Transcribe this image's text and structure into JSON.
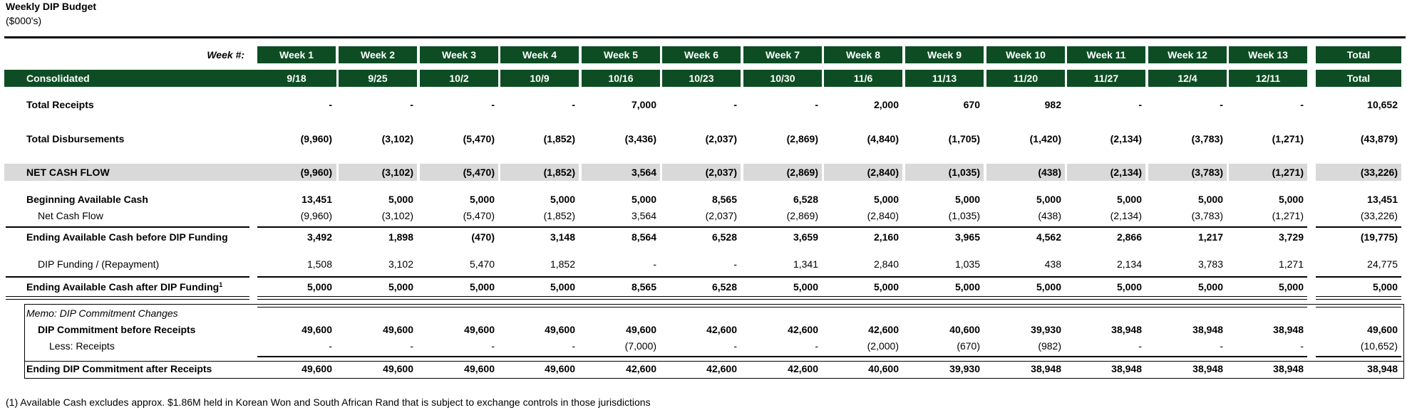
{
  "header": {
    "title": "Weekly DIP Budget",
    "subtitle": "($000's)"
  },
  "columns": {
    "week_label": "Week #:",
    "weeks": [
      "Week 1",
      "Week 2",
      "Week 3",
      "Week 4",
      "Week 5",
      "Week 6",
      "Week 7",
      "Week 8",
      "Week 9",
      "Week 10",
      "Week 11",
      "Week 12",
      "Week 13"
    ],
    "week_total": "Total",
    "consolidated_label": "Consolidated",
    "dates": [
      "9/18",
      "9/25",
      "10/2",
      "10/9",
      "10/16",
      "10/23",
      "10/30",
      "11/6",
      "11/13",
      "11/20",
      "11/27",
      "12/4",
      "12/11"
    ],
    "date_total": "Total"
  },
  "rows": {
    "total_receipts": {
      "label": "Total Receipts",
      "values": [
        "-",
        "-",
        "-",
        "-",
        "7,000",
        "-",
        "-",
        "2,000",
        "670",
        "982",
        "-",
        "-",
        "-"
      ],
      "total": "10,652"
    },
    "total_disbursements": {
      "label": "Total Disbursements",
      "values": [
        "(9,960)",
        "(3,102)",
        "(5,470)",
        "(1,852)",
        "(3,436)",
        "(2,037)",
        "(2,869)",
        "(4,840)",
        "(1,705)",
        "(1,420)",
        "(2,134)",
        "(3,783)",
        "(1,271)"
      ],
      "total": "(43,879)"
    },
    "net_cash_flow": {
      "label": "NET CASH FLOW",
      "values": [
        "(9,960)",
        "(3,102)",
        "(5,470)",
        "(1,852)",
        "3,564",
        "(2,037)",
        "(2,869)",
        "(2,840)",
        "(1,035)",
        "(438)",
        "(2,134)",
        "(3,783)",
        "(1,271)"
      ],
      "total": "(33,226)"
    },
    "beginning_cash": {
      "label": "Beginning Available Cash",
      "values": [
        "13,451",
        "5,000",
        "5,000",
        "5,000",
        "5,000",
        "8,565",
        "6,528",
        "5,000",
        "5,000",
        "5,000",
        "5,000",
        "5,000",
        "5,000"
      ],
      "total": "13,451"
    },
    "net_cash_flow_sub": {
      "label": "Net Cash Flow",
      "values": [
        "(9,960)",
        "(3,102)",
        "(5,470)",
        "(1,852)",
        "3,564",
        "(2,037)",
        "(2,869)",
        "(2,840)",
        "(1,035)",
        "(438)",
        "(2,134)",
        "(3,783)",
        "(1,271)"
      ],
      "total": "(33,226)"
    },
    "ending_before_dip": {
      "label": "Ending Available Cash before DIP Funding",
      "values": [
        "3,492",
        "1,898",
        "(470)",
        "3,148",
        "8,564",
        "6,528",
        "3,659",
        "2,160",
        "3,965",
        "4,562",
        "2,866",
        "1,217",
        "3,729"
      ],
      "total": "(19,775)"
    },
    "dip_funding": {
      "label": "DIP Funding / (Repayment)",
      "values": [
        "1,508",
        "3,102",
        "5,470",
        "1,852",
        "-",
        "-",
        "1,341",
        "2,840",
        "1,035",
        "438",
        "2,134",
        "3,783",
        "1,271"
      ],
      "total": "24,775"
    },
    "ending_after_dip": {
      "label": "Ending Available Cash after DIP Funding",
      "footnote_mark": "1",
      "values": [
        "5,000",
        "5,000",
        "5,000",
        "5,000",
        "8,565",
        "6,528",
        "5,000",
        "5,000",
        "5,000",
        "5,000",
        "5,000",
        "5,000",
        "5,000"
      ],
      "total": "5,000"
    }
  },
  "memo": {
    "title": "Memo: DIP Commitment Changes",
    "before_receipts": {
      "label": "DIP Commitment before Receipts",
      "values": [
        "49,600",
        "49,600",
        "49,600",
        "49,600",
        "49,600",
        "42,600",
        "42,600",
        "42,600",
        "40,600",
        "39,930",
        "38,948",
        "38,948",
        "38,948"
      ],
      "total": "49,600"
    },
    "less_receipts": {
      "label": "Less: Receipts",
      "values": [
        "-",
        "-",
        "-",
        "-",
        "(7,000)",
        "-",
        "-",
        "(2,000)",
        "(670)",
        "(982)",
        "-",
        "-",
        "-"
      ],
      "total": "(10,652)"
    },
    "ending_commitment": {
      "label": "Ending DIP Commitment after Receipts",
      "values": [
        "49,600",
        "49,600",
        "49,600",
        "49,600",
        "42,600",
        "42,600",
        "42,600",
        "40,600",
        "39,930",
        "38,948",
        "38,948",
        "38,948",
        "38,948"
      ],
      "total": "38,948"
    }
  },
  "footnote": "(1) Available Cash excludes approx. $1.86M held in Korean Won and South African Rand that is subject to exchange controls in those jurisdictions"
}
